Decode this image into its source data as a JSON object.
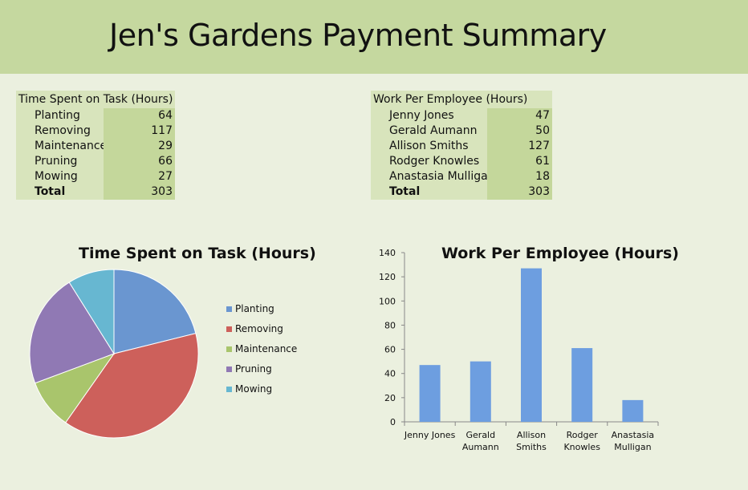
{
  "title": "Jen's Gardens Payment Summary",
  "task_table": {
    "header": "Time Spent on Task (Hours)",
    "rows": [
      {
        "label": "Planting",
        "value": "64"
      },
      {
        "label": "Removing",
        "value": "117"
      },
      {
        "label": "Maintenance",
        "value": "29"
      },
      {
        "label": "Pruning",
        "value": "66"
      },
      {
        "label": "Mowing",
        "value": "27"
      }
    ],
    "total_label": "Total",
    "total_value": "303"
  },
  "employee_table": {
    "header": "Work Per Employee (Hours)",
    "rows": [
      {
        "label": "Jenny Jones",
        "value": "47"
      },
      {
        "label": "Gerald Aumann",
        "value": "50"
      },
      {
        "label": "Allison Smiths",
        "value": "127"
      },
      {
        "label": "Rodger Knowles",
        "value": "61"
      },
      {
        "label": "Anastasia Mulligan",
        "value": "18"
      }
    ],
    "total_label": "Total",
    "total_value": "303"
  },
  "chart_data": [
    {
      "type": "pie",
      "title": "Time Spent on Task (Hours)",
      "categories": [
        "Planting",
        "Removing",
        "Maintenance",
        "Pruning",
        "Mowing"
      ],
      "values": [
        64,
        117,
        29,
        66,
        27
      ],
      "colors": [
        "#6a96d0",
        "#cd605b",
        "#a9c56c",
        "#9079b4",
        "#67b7d1"
      ],
      "legend": "right"
    },
    {
      "type": "bar",
      "title": "Work Per Employee (Hours)",
      "categories": [
        [
          "Jenny Jones"
        ],
        [
          "Gerald",
          "Aumann"
        ],
        [
          "Allison",
          "Smiths"
        ],
        [
          "Rodger",
          "Knowles"
        ],
        [
          "Anastasia",
          "Mulligan"
        ]
      ],
      "values": [
        47,
        50,
        127,
        61,
        18
      ],
      "ylim": [
        0,
        140
      ],
      "yticks": [
        0,
        20,
        40,
        60,
        80,
        100,
        120,
        140
      ],
      "color": "#6d9ee0",
      "grid": false
    }
  ]
}
